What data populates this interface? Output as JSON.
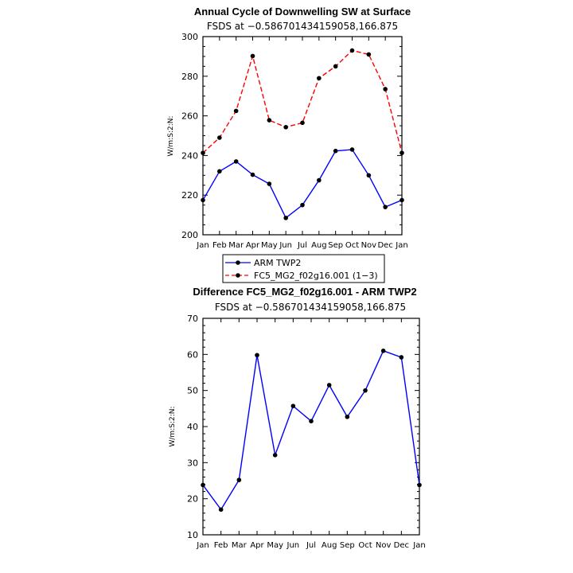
{
  "chart_data": [
    {
      "type": "line",
      "title": "Annual Cycle of Downwelling SW at Surface",
      "subtitle": "FSDS at −0.586701434159058,166.875",
      "ylabel": "W/m:S:2:N:",
      "ylim": [
        200,
        300
      ],
      "yticks": [
        "200",
        "220",
        "240",
        "260",
        "280",
        "300"
      ],
      "categories": [
        "Jan",
        "Feb",
        "Mar",
        "Apr",
        "May",
        "Jun",
        "Jul",
        "Aug",
        "Sep",
        "Oct",
        "Nov",
        "Dec",
        "Jan"
      ],
      "series": [
        {
          "name": "ARM TWP2",
          "color": "#0000ff",
          "dash": "solid",
          "values": [
            217.5,
            232,
            237,
            230.3,
            225.7,
            208.5,
            215,
            227.5,
            242.3,
            243,
            230,
            214,
            217.5
          ]
        },
        {
          "name": "FC5_MG2_f02g16.001 (1−3)",
          "color": "#ff0000",
          "dash": "dashed",
          "values": [
            241.3,
            249,
            262.5,
            290.2,
            257.8,
            254.3,
            256.5,
            279,
            285,
            293,
            291,
            273.5,
            241.3
          ]
        }
      ],
      "legend": "below"
    },
    {
      "type": "line",
      "title": "Difference FC5_MG2_f02g16.001 - ARM TWP2",
      "subtitle": "FSDS at −0.586701434159058,166.875",
      "ylabel": "W/m:S:2:N:",
      "ylim": [
        10,
        70
      ],
      "yticks": [
        "10",
        "20",
        "30",
        "40",
        "50",
        "60",
        "70"
      ],
      "categories": [
        "Jan",
        "Feb",
        "Mar",
        "Apr",
        "May",
        "Jun",
        "Jul",
        "Aug",
        "Sep",
        "Oct",
        "Nov",
        "Dec",
        "Jan"
      ],
      "series": [
        {
          "color": "#0000ff",
          "dash": "solid",
          "values": [
            23.8,
            17,
            25.2,
            59.8,
            32.1,
            45.7,
            41.5,
            51.5,
            42.7,
            50,
            61,
            59.2,
            23.8
          ]
        }
      ]
    }
  ]
}
